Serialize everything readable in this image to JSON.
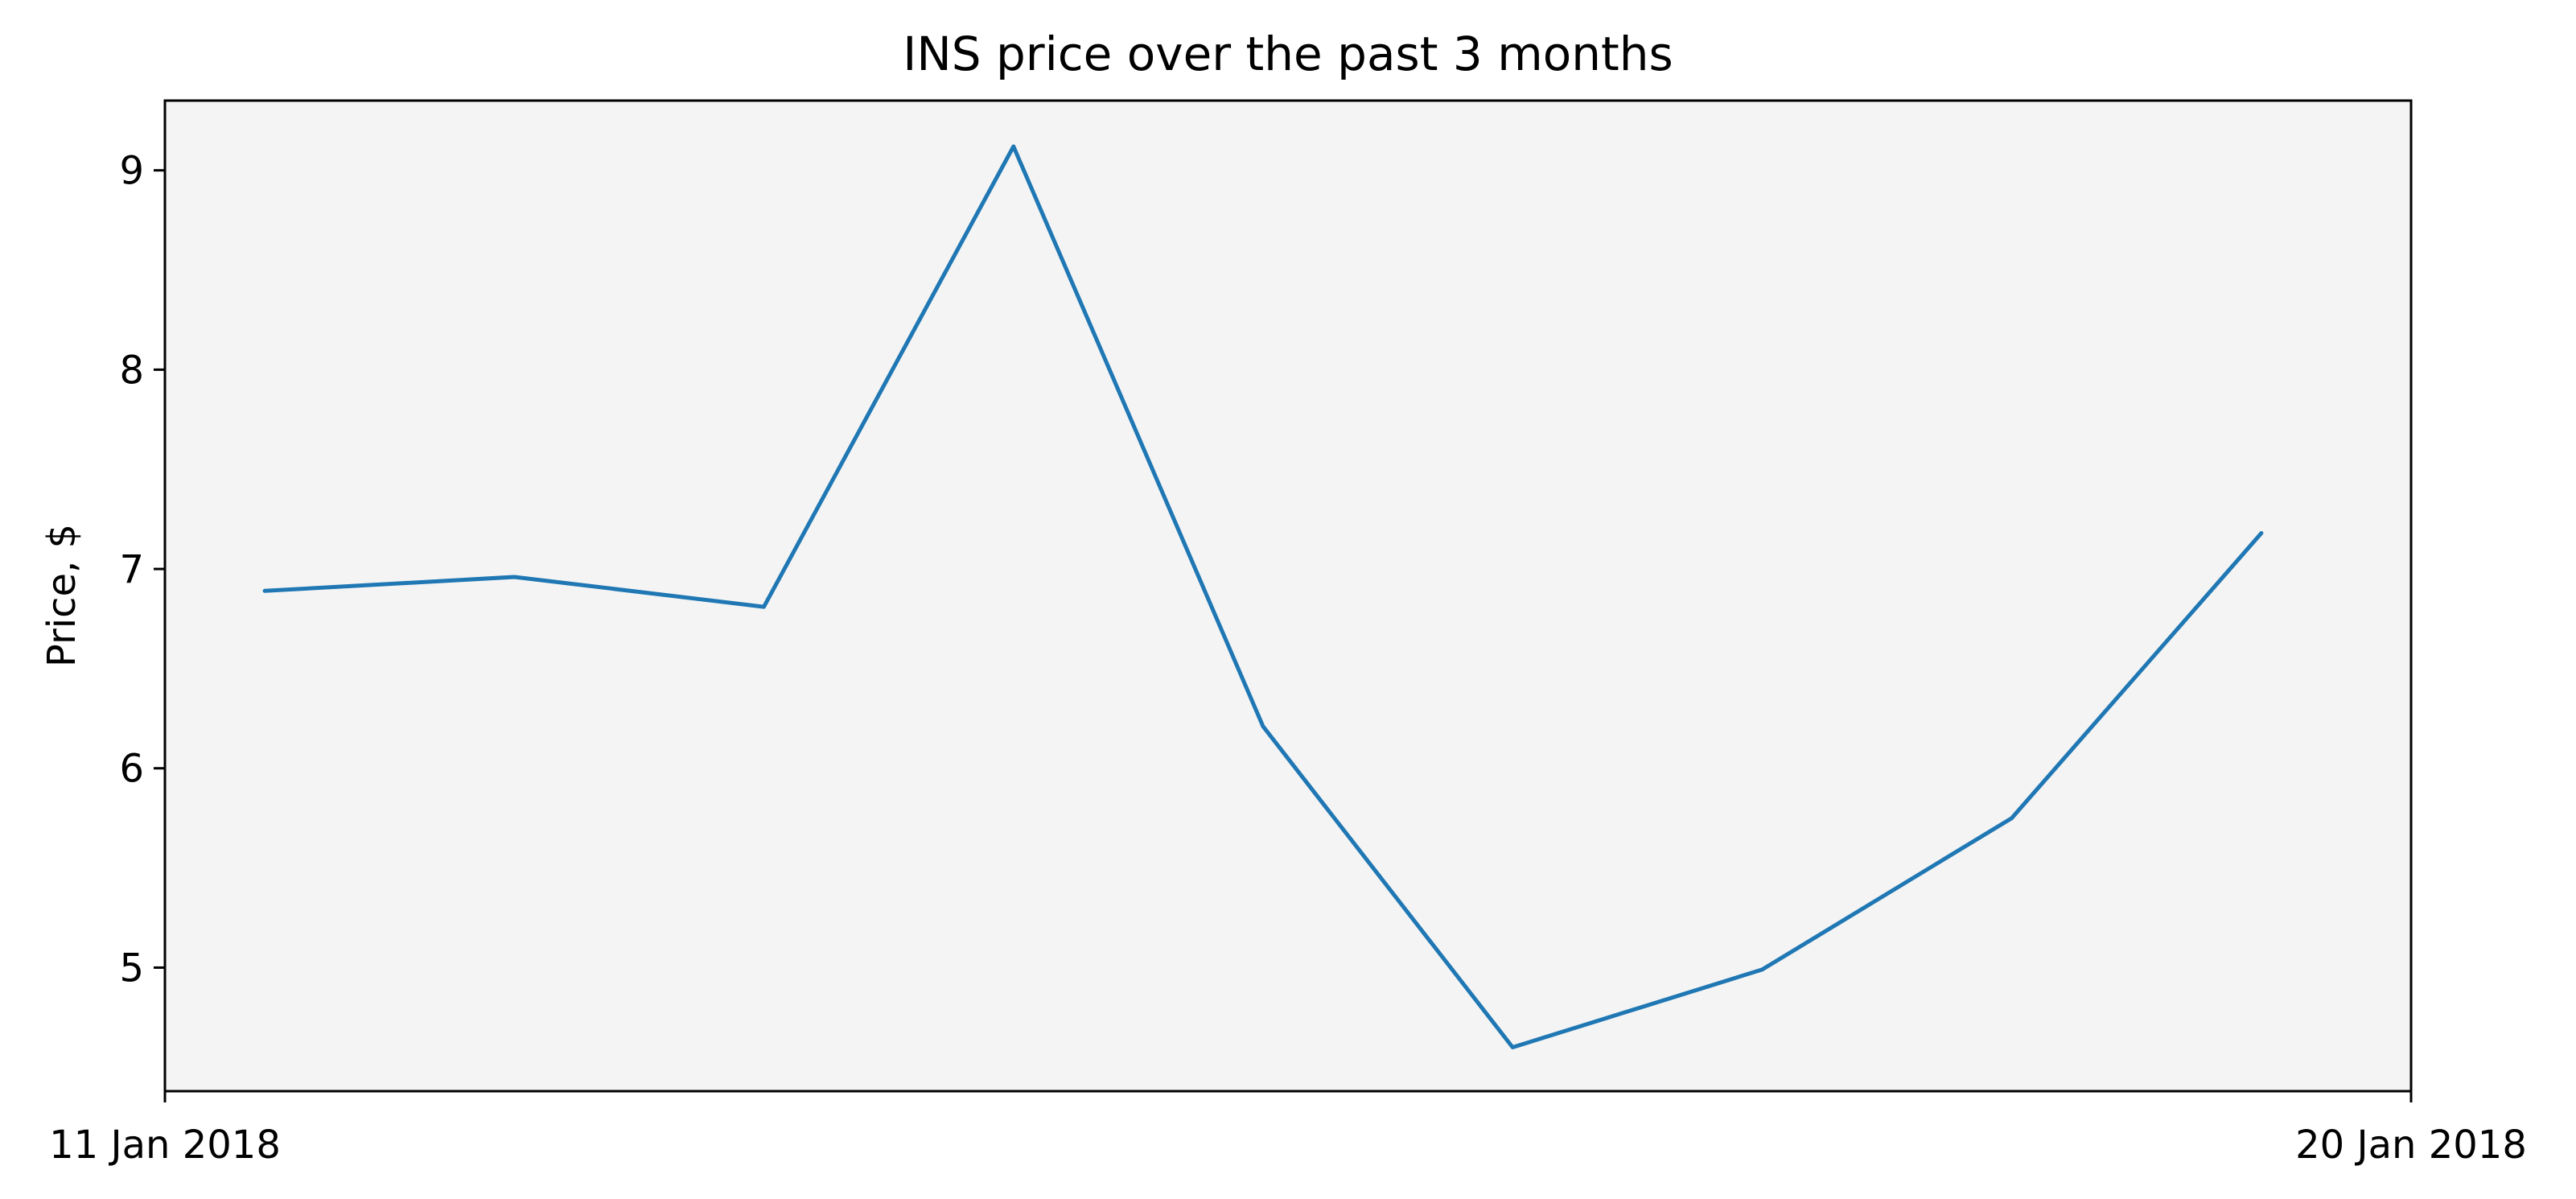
{
  "chart_data": {
    "type": "line",
    "title": "INS price over the past 3 months",
    "xlabel": "",
    "ylabel": "Price, $",
    "x": [
      "2018-01-11",
      "2018-01-12",
      "2018-01-13",
      "2018-01-14",
      "2018-01-15",
      "2018-01-16",
      "2018-01-17",
      "2018-01-18",
      "2018-01-19"
    ],
    "series": [
      {
        "values": [
          6.89,
          6.96,
          6.81,
          9.12,
          6.21,
          4.6,
          4.99,
          5.75,
          7.18
        ]
      }
    ],
    "xlim": [
      "2018-01-10 14:24",
      "2018-01-19 14:24"
    ],
    "ylim": [
      4.38,
      9.35
    ],
    "x_ticks": [
      {
        "date": "2018-01-10 14:24",
        "label": "11 Jan 2018"
      },
      {
        "date": "2018-01-19 14:24",
        "label": "20 Jan 2018"
      }
    ],
    "y_ticks": [
      5,
      6,
      7,
      8,
      9
    ],
    "grid": false,
    "legend": "none",
    "colors": {
      "line": "#1f77b4",
      "plot_background": "#f4f4f4",
      "axes": "#000000"
    }
  }
}
